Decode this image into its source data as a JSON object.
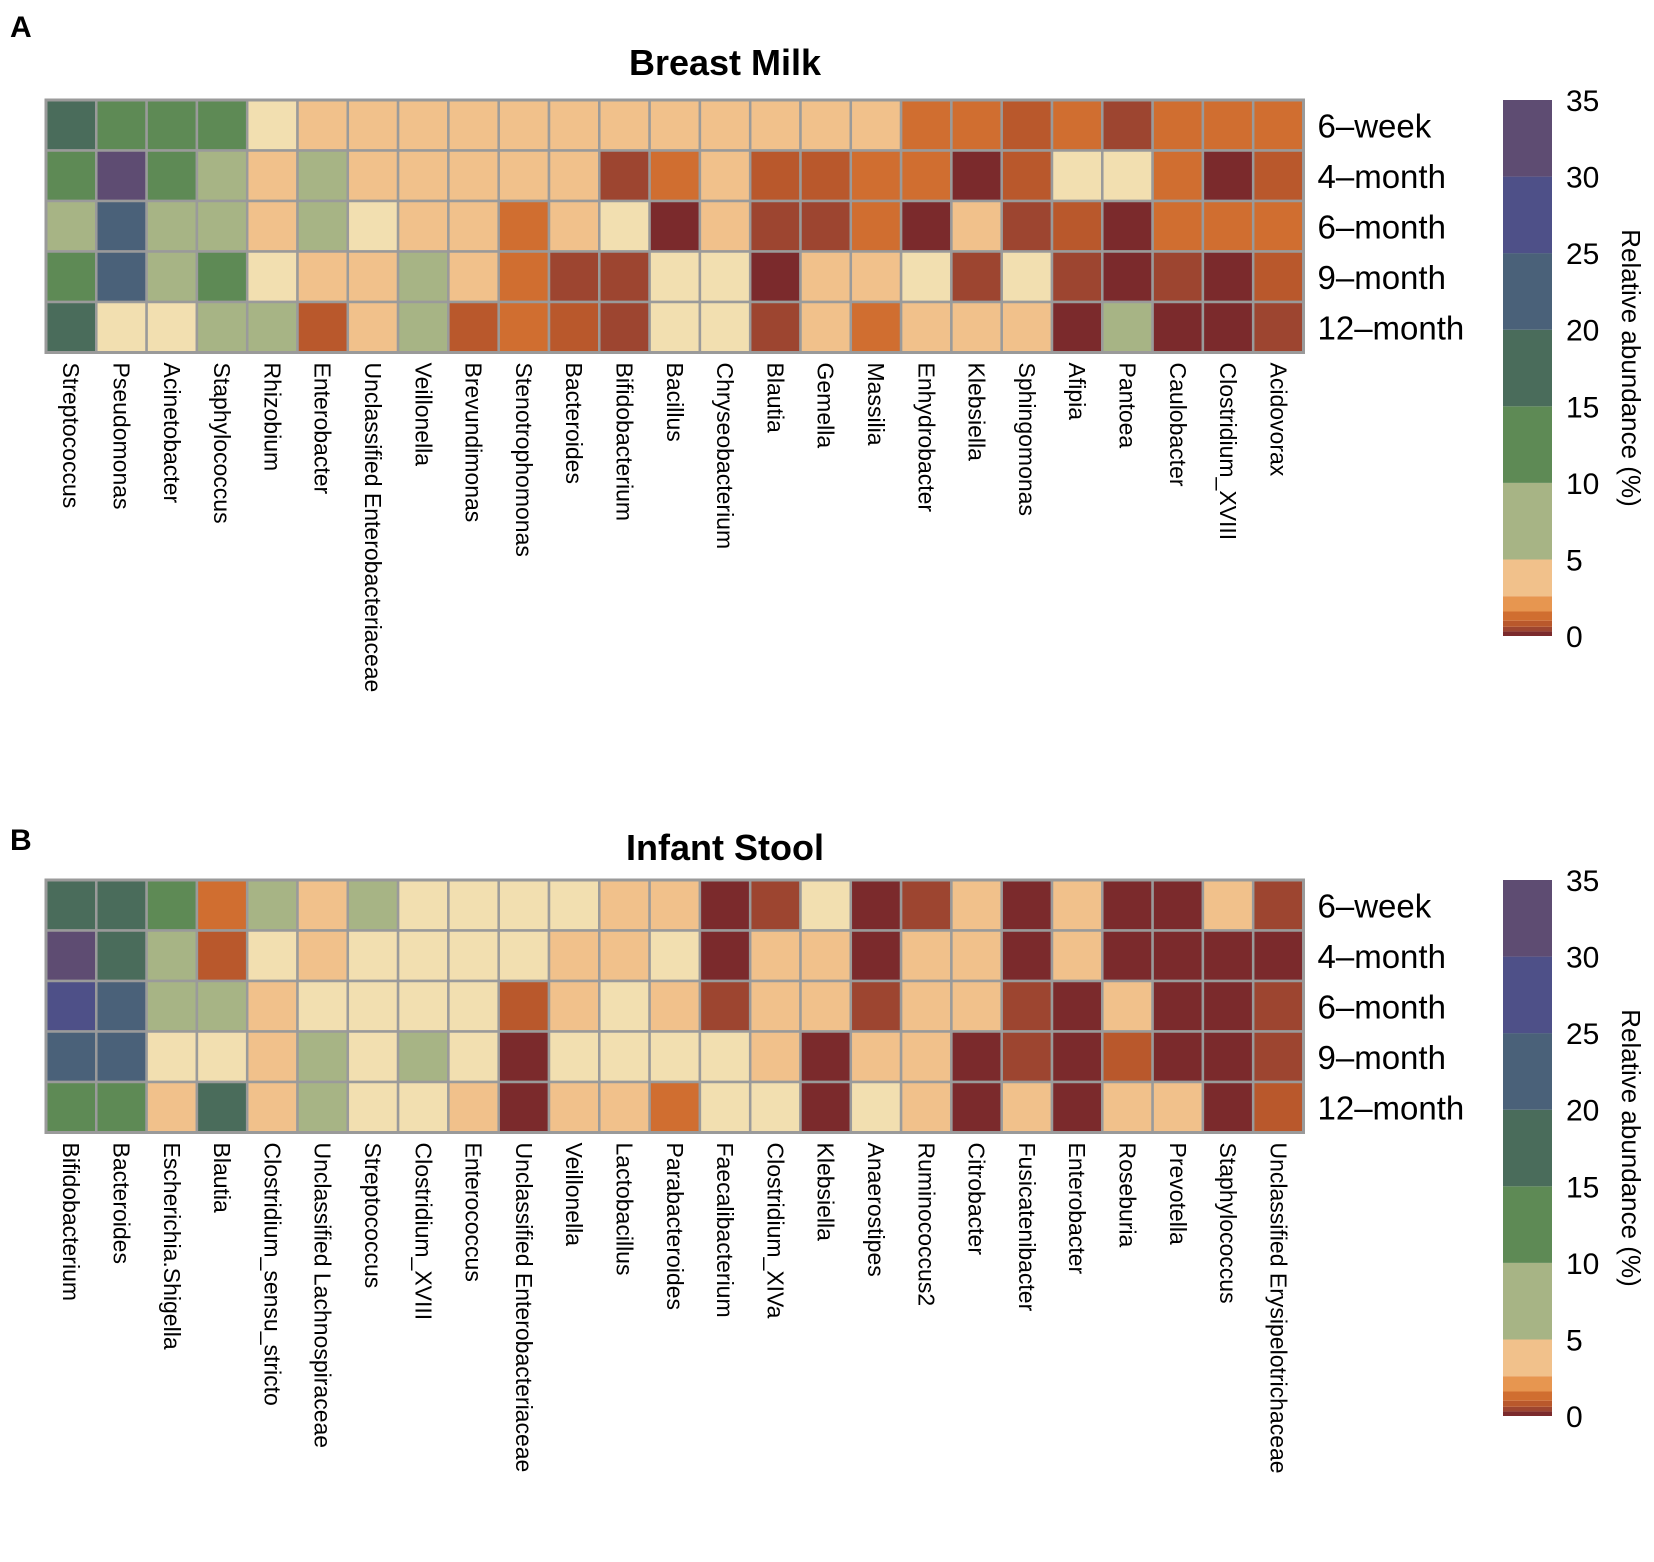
{
  "chart_data": [
    {
      "type": "heatmap",
      "panel": "A",
      "title": "Breast Milk",
      "rows": [
        "6–week",
        "4–month",
        "6–month",
        "9–month",
        "12–month"
      ],
      "columns": [
        "Streptococcus",
        "Pseudomonas",
        "Acinetobacter",
        "Staphylococcus",
        "Rhizobium",
        "Enterobacter",
        "Unclassified Enterobacteriaceae",
        "Veillonella",
        "Brevundimonas",
        "Stenotrophomonas",
        "Bacteroides",
        "Bifidobacterium",
        "Bacillus",
        "Chryseobacterium",
        "Blautia",
        "Gemella",
        "Massilia",
        "Enhydrobacter",
        "Klebsiella",
        "Sphingomonas",
        "Afipia",
        "Pantoea",
        "Caulobacter",
        "Clostridium_XVIII",
        "Acidovorax"
      ],
      "values": [
        [
          17,
          12,
          13,
          12,
          4,
          2,
          2,
          2,
          2,
          2,
          2,
          2,
          2,
          2,
          2,
          2,
          2,
          1,
          1,
          0.5,
          1,
          0.3,
          1,
          1,
          1
        ],
        [
          12,
          33,
          13,
          7,
          2,
          7,
          2,
          2,
          2,
          2,
          2,
          0.3,
          1,
          2,
          0.5,
          0.5,
          1,
          1,
          0.05,
          0.5,
          3,
          3,
          1,
          0.05,
          0.5
        ],
        [
          7,
          22,
          7,
          7,
          2,
          7,
          4,
          2,
          2,
          1,
          2,
          4,
          0.05,
          2,
          0.3,
          0.3,
          1,
          0.05,
          2,
          0.3,
          0.5,
          0.05,
          1,
          1,
          1
        ],
        [
          12,
          22,
          7,
          12,
          4,
          2,
          2,
          7,
          2,
          1,
          0.3,
          0.3,
          4,
          4,
          0.05,
          2,
          2,
          4,
          0.3,
          4,
          0.3,
          0.05,
          0.3,
          0.05,
          0.5
        ],
        [
          17,
          4,
          4,
          7,
          7,
          0.5,
          2,
          7,
          0.5,
          1,
          0.5,
          0.3,
          4,
          4,
          0.3,
          2,
          1,
          2,
          2,
          2,
          0.05,
          7,
          0.05,
          0.05,
          0.3
        ]
      ],
      "legend": {
        "title": "Relative abundance (%)",
        "ticks": [
          "0",
          "5",
          "10",
          "15",
          "20",
          "25",
          "30",
          "35"
        ],
        "range": [
          0,
          35
        ],
        "placement": "right"
      }
    },
    {
      "type": "heatmap",
      "panel": "B",
      "title": "Infant Stool",
      "rows": [
        "6–week",
        "4–month",
        "6–month",
        "9–month",
        "12–month"
      ],
      "columns": [
        "Bifidobacterium",
        "Bacteroides",
        "Escherichia.Shigella",
        "Blautia",
        "Clostridium_sensu_stricto",
        "Unclassified Lachnospiraceae",
        "Streptococcus",
        "Clostridium_XVIII",
        "Enterococcus",
        "Unclassified Enterobacteriaceae",
        "Veillonella",
        "Lactobacillus",
        "Parabacteroides",
        "Faecalibacterium",
        "Clostridium_XIVa",
        "Klebsiella",
        "Anaerostipes",
        "Ruminococcus2",
        "Citrobacter",
        "Fusicatenibacter",
        "Enterobacter",
        "Roseburia",
        "Prevotella",
        "Staphylococcus",
        "Unclassified Erysipelotrichaceae"
      ],
      "values": [
        [
          17,
          17,
          12,
          1,
          7,
          2,
          7,
          4,
          4,
          4,
          4,
          2,
          2,
          0.05,
          0.3,
          4,
          0.05,
          0.3,
          2,
          0.05,
          2,
          0.05,
          0.05,
          2,
          0.3
        ],
        [
          33,
          17,
          7,
          0.5,
          4,
          2,
          4,
          4,
          4,
          4,
          2,
          2,
          4,
          0.05,
          2,
          2,
          0.05,
          2,
          2,
          0.05,
          2,
          0.05,
          0.05,
          0.05,
          0.05
        ],
        [
          27,
          22,
          7,
          7,
          2,
          4,
          4,
          4,
          4,
          0.5,
          2,
          4,
          2,
          0.3,
          2,
          2,
          0.3,
          2,
          2,
          0.3,
          0.05,
          2,
          0.05,
          0.05,
          0.3
        ],
        [
          22,
          22,
          4,
          4,
          2,
          7,
          4,
          7,
          4,
          0.05,
          4,
          4,
          4,
          4,
          2,
          0.05,
          2,
          2,
          0.05,
          0.3,
          0.05,
          0.5,
          0.05,
          0.05,
          0.3
        ],
        [
          12,
          12,
          2,
          17,
          2,
          7,
          4,
          4,
          2,
          0.05,
          2,
          2,
          1,
          4,
          4,
          0.05,
          4,
          2,
          0.05,
          2,
          0.05,
          2,
          2,
          0.05,
          0.5
        ]
      ],
      "legend": {
        "title": "Relative abundance (%)",
        "ticks": [
          "0",
          "5",
          "10",
          "15",
          "20",
          "25",
          "30",
          "35"
        ],
        "range": [
          0,
          35
        ],
        "placement": "right"
      }
    }
  ],
  "colors": {
    "grid_line": "#9a9a9a",
    "scale": [
      "#7b2a2c",
      "#9d4530",
      "#b9582c",
      "#d06e30",
      "#e79650",
      "#f1c18b",
      "#f2dfb0",
      "#a7b485",
      "#5e8a55",
      "#4a6c5b",
      "#4a6179",
      "#4e5088",
      "#5e4c72"
    ],
    "legend_bands": [
      "#f2dfb0",
      "#a7b485",
      "#5e8a55",
      "#4a6c5b",
      "#4a6179",
      "#4e5088",
      "#5e4c72"
    ]
  }
}
